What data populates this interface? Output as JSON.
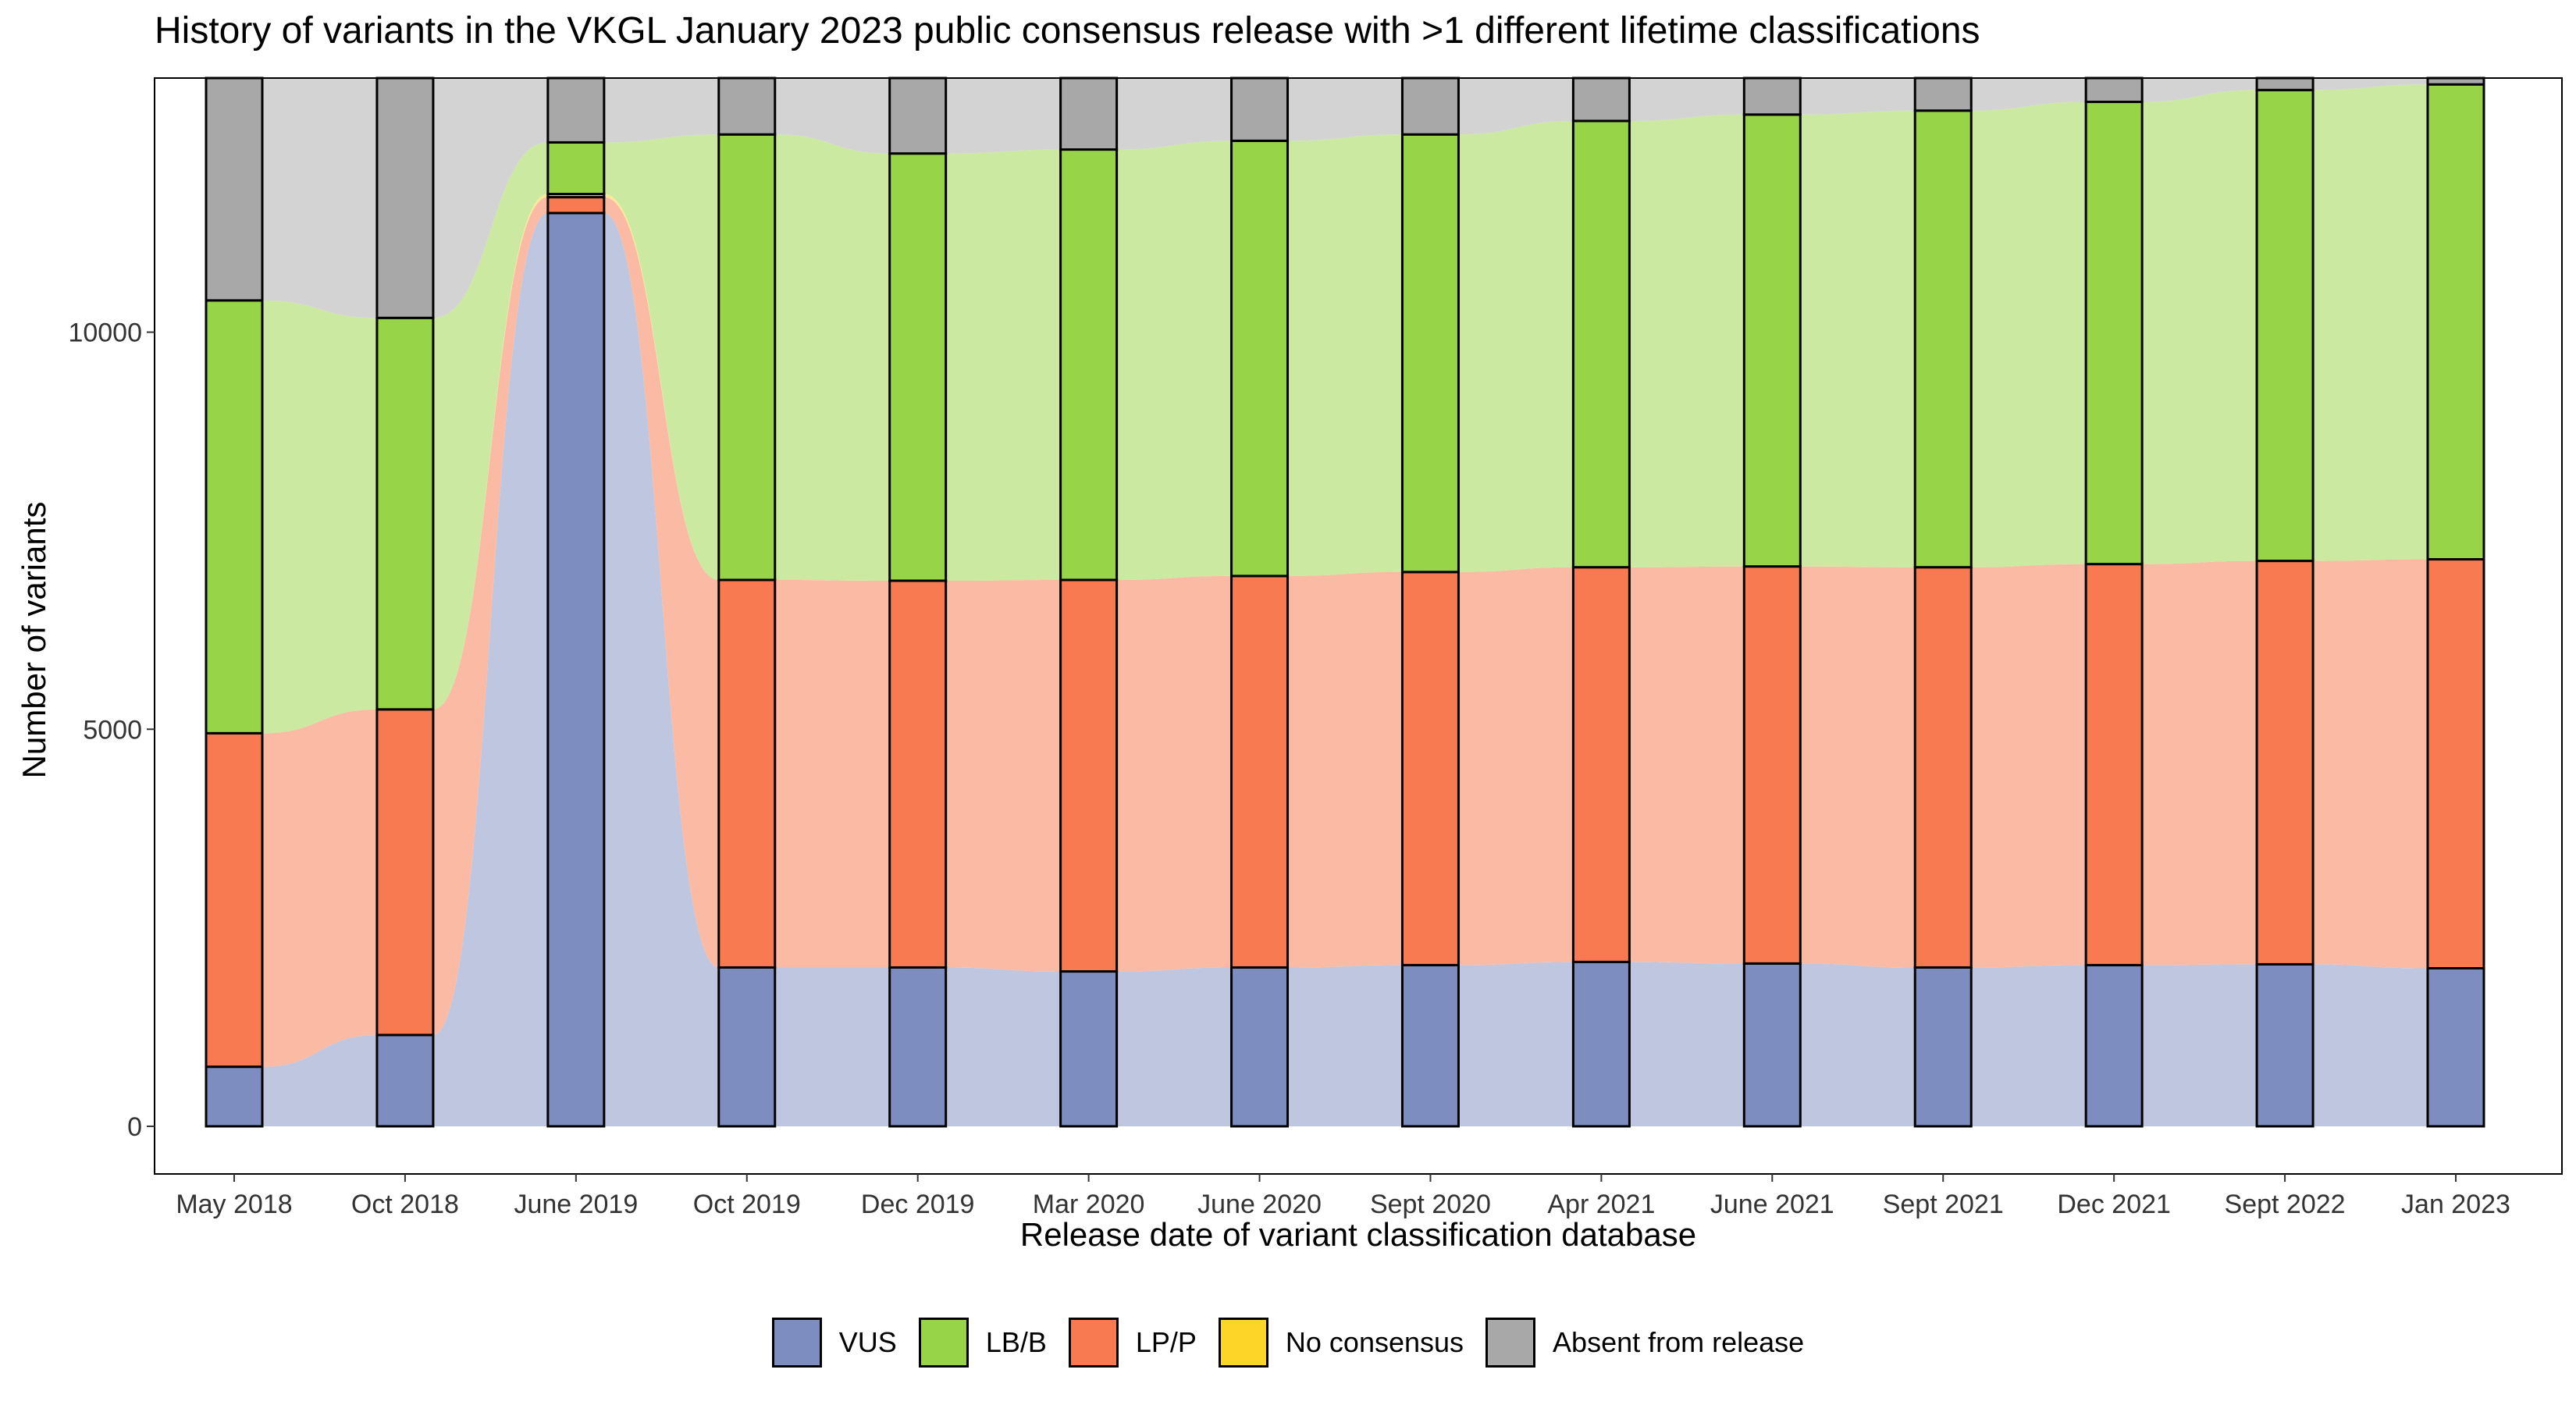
{
  "chart_data": {
    "type": "alluvial",
    "title": "History of variants in the VKGL January 2023 public consensus release with >1 different lifetime classifications",
    "xlabel": "Release date of variant classification database",
    "ylabel": "Number of variants",
    "ylim": [
      -600,
      13200
    ],
    "y_ticks": [
      0,
      5000,
      10000
    ],
    "y_tick_labels": [
      "0",
      "5000",
      "10000"
    ],
    "grid": false,
    "legend_position": "bottom",
    "categories": [
      "May 2018",
      "Oct 2018",
      "June 2019",
      "Oct 2019",
      "Dec 2019",
      "Mar 2020",
      "June 2020",
      "Sept 2020",
      "Apr 2021",
      "June 2021",
      "Sept 2021",
      "Dec 2021",
      "Sept 2022",
      "Jan 2023"
    ],
    "series": [
      {
        "name": "VUS",
        "color": "#7d8dc0",
        "values": [
          750,
          1150,
          11500,
          2000,
          2000,
          1950,
          2000,
          2030,
          2070,
          2050,
          2000,
          2030,
          2040,
          1990
        ]
      },
      {
        "name": "LP/P",
        "color": "#f77a50",
        "values": [
          4200,
          4100,
          200,
          4880,
          4870,
          4930,
          4930,
          4950,
          4970,
          5000,
          5040,
          5050,
          5080,
          5150
        ]
      },
      {
        "name": "No consensus",
        "color": "#fdd528",
        "values": [
          0,
          0,
          40,
          0,
          0,
          0,
          0,
          0,
          0,
          0,
          0,
          0,
          0,
          0
        ]
      },
      {
        "name": "LB/B",
        "color": "#98d448",
        "values": [
          5450,
          4930,
          650,
          5610,
          5380,
          5420,
          5480,
          5510,
          5620,
          5690,
          5750,
          5820,
          5930,
          5980
        ]
      },
      {
        "name": "Absent from release",
        "color": "#a8a8a8",
        "values": [
          2800,
          3020,
          810,
          710,
          950,
          900,
          790,
          710,
          540,
          460,
          410,
          300,
          150,
          80
        ]
      }
    ],
    "legend_order": [
      "VUS",
      "LB/B",
      "LP/P",
      "No consensus",
      "Absent from release"
    ],
    "flow_colors": {
      "VUS": "#bfc7e0",
      "LP/P": "#fbbaa3",
      "LB/B": "#cce9a1",
      "No consensus": "#fde89a",
      "Absent from release": "#d3d3d3"
    }
  }
}
